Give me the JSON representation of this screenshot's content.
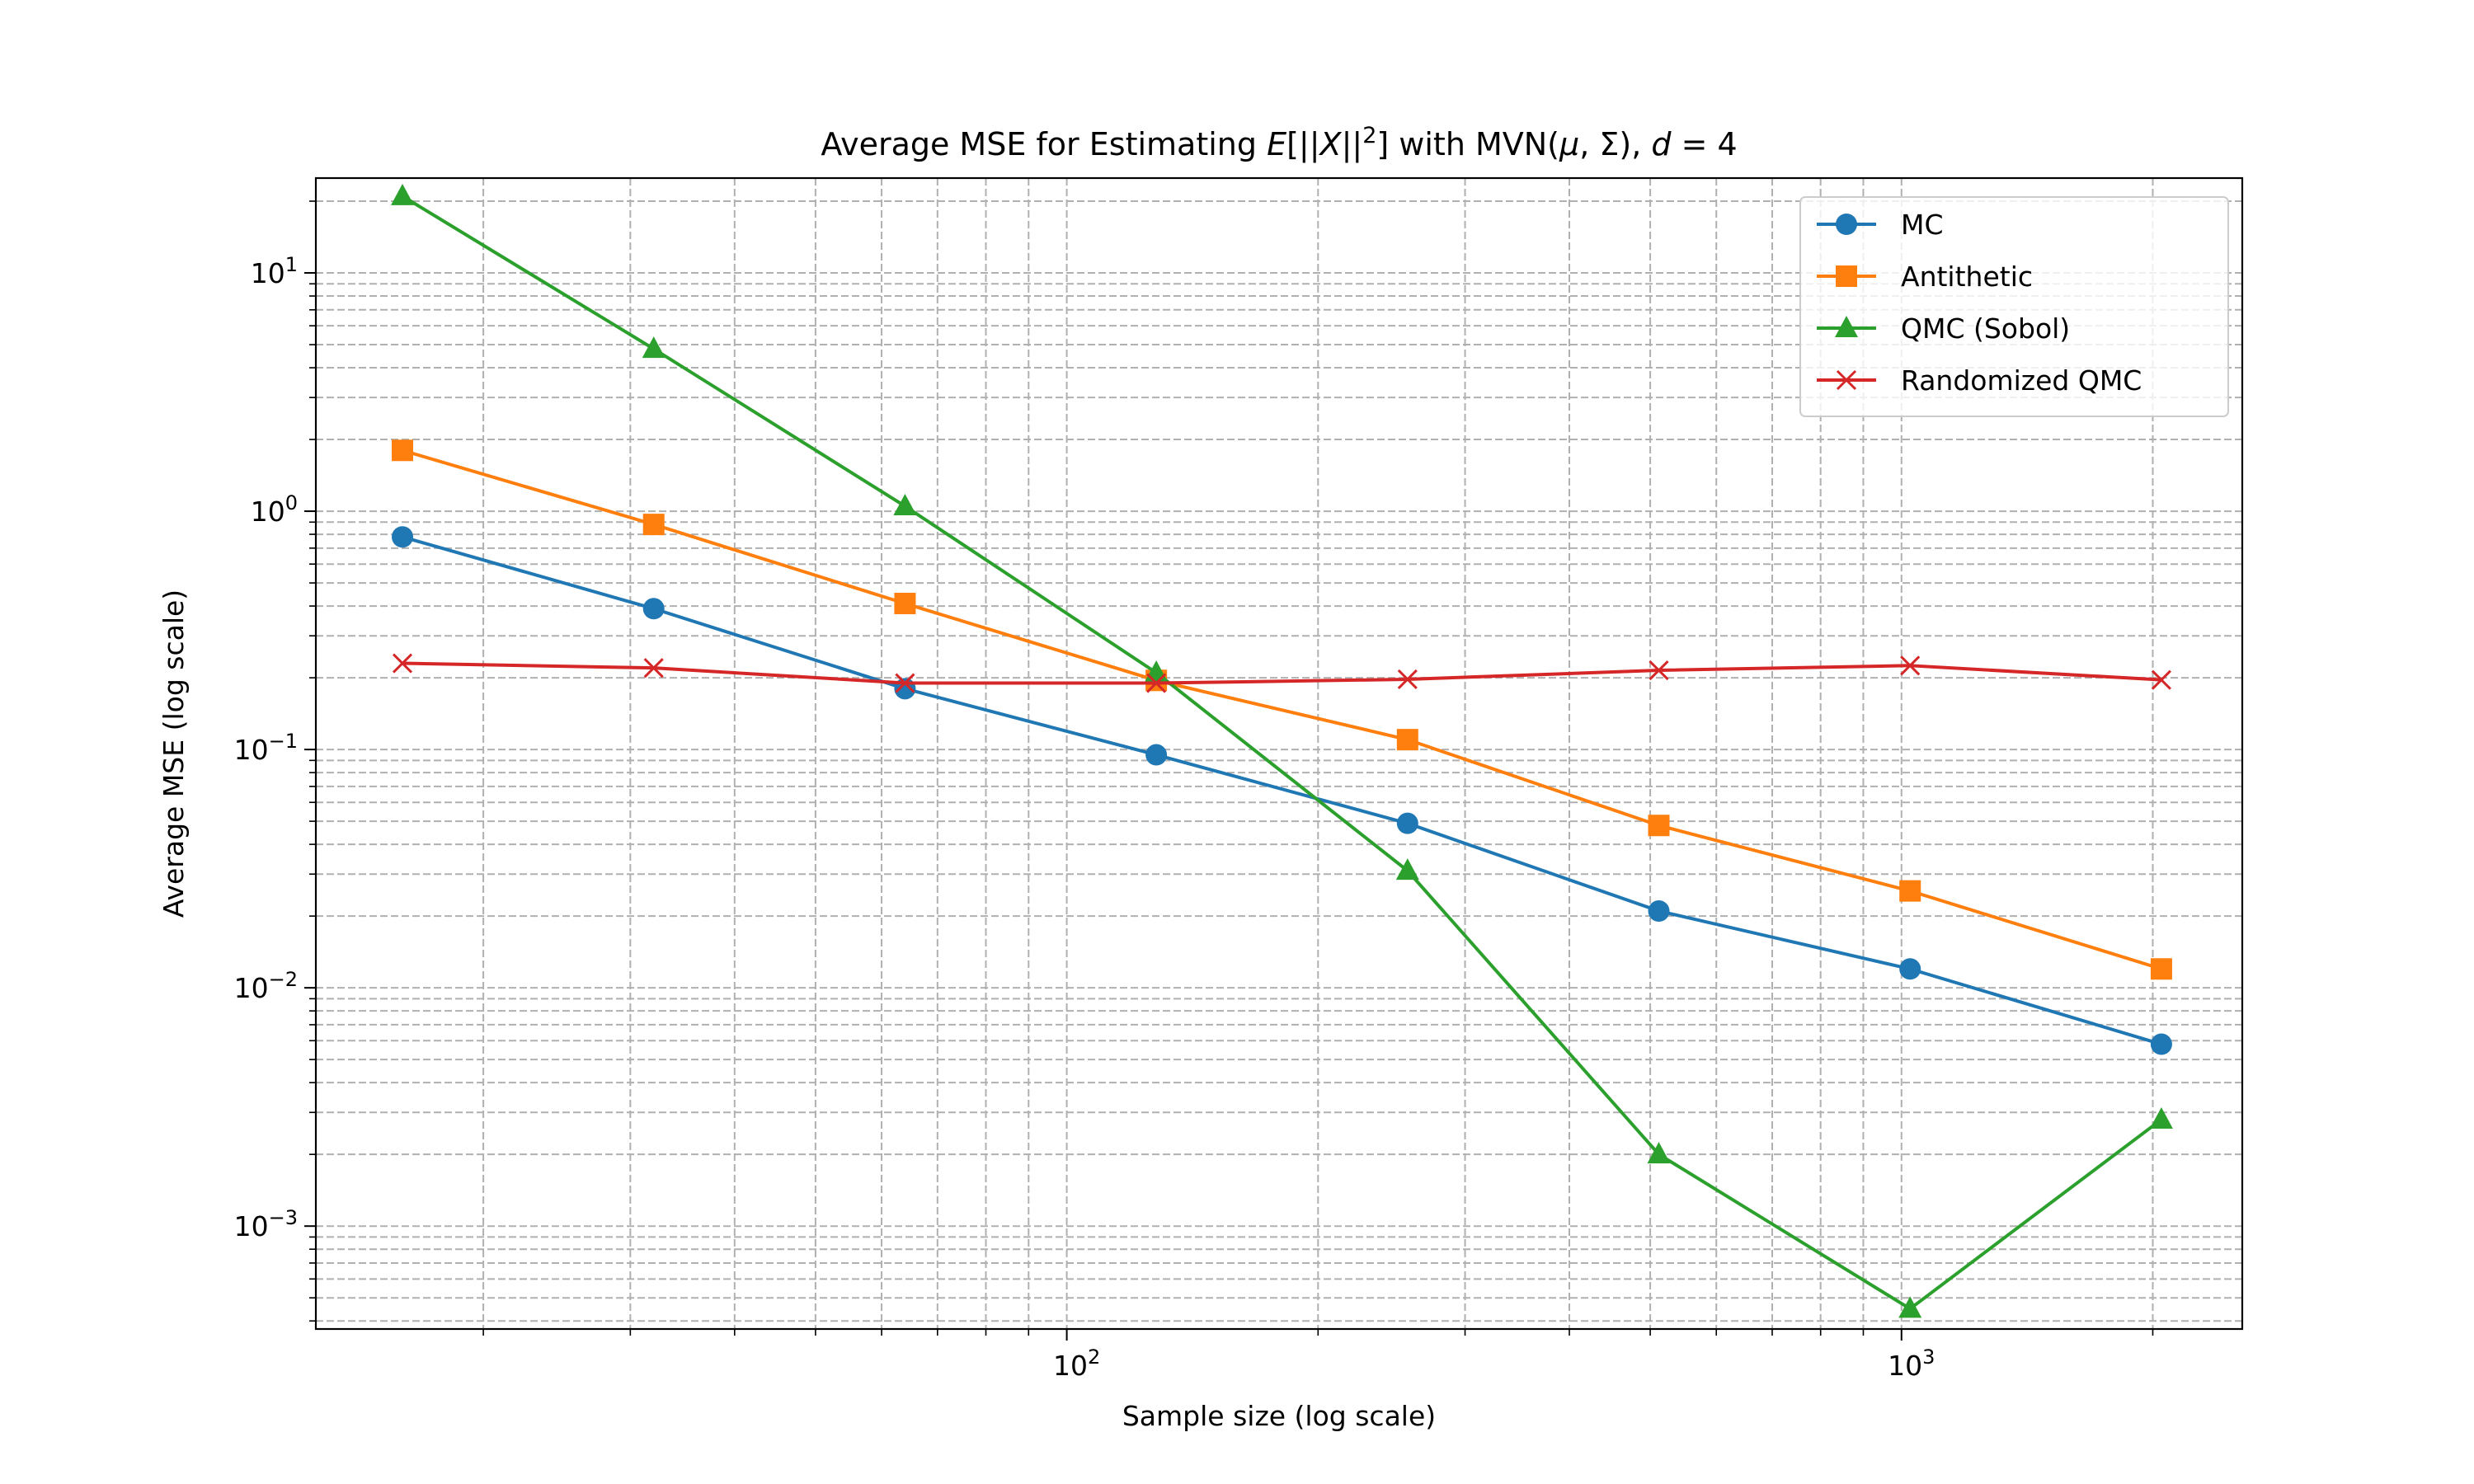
{
  "chart_data": {
    "type": "line",
    "title": {
      "pre": "Average MSE for Estimating ",
      "math1": "E",
      "brackets": "[||",
      "math2": "X",
      "bars": "||",
      "sup": "2",
      "close": "] with MVN(",
      "mu": "μ",
      "sep": ", Σ), ",
      "d": "d",
      "eq": " = 4"
    },
    "xlabel": "Sample size (log scale)",
    "ylabel": "Average MSE (log scale)",
    "xscale": "log",
    "yscale": "log",
    "xlim": [
      12.6,
      2560
    ],
    "ylim": [
      0.00037,
      25
    ],
    "x_ticks": [
      {
        "value": 100,
        "base": "10",
        "exp": "2"
      },
      {
        "value": 1000,
        "base": "10",
        "exp": "3"
      }
    ],
    "y_ticks": [
      {
        "value": 10,
        "base": "10",
        "exp": "1"
      },
      {
        "value": 1,
        "base": "10",
        "exp": "0"
      },
      {
        "value": 0.1,
        "base": "10",
        "exp": "−1"
      },
      {
        "value": 0.01,
        "base": "10",
        "exp": "−2"
      },
      {
        "value": 0.001,
        "base": "10",
        "exp": "−3"
      }
    ],
    "grid": true,
    "legend_position": "top-right",
    "x": [
      16,
      32,
      64,
      128,
      256,
      512,
      1024,
      2048
    ],
    "series": [
      {
        "name": "MC",
        "color": "#1f77b4",
        "marker": "circle",
        "values": [
          0.78,
          0.39,
          0.18,
          0.095,
          0.049,
          0.021,
          0.012,
          0.0058
        ]
      },
      {
        "name": "Antithetic",
        "color": "#ff7f0e",
        "marker": "square",
        "values": [
          1.8,
          0.88,
          0.41,
          0.195,
          0.11,
          0.048,
          0.0255,
          0.012
        ]
      },
      {
        "name": "QMC (Sobol)",
        "color": "#2ca02c",
        "marker": "triangle",
        "values": [
          21.0,
          4.8,
          1.05,
          0.21,
          0.031,
          0.002,
          0.00045,
          0.0028
        ]
      },
      {
        "name": "Randomized QMC",
        "color": "#d62728",
        "marker": "x",
        "values": [
          0.23,
          0.22,
          0.19,
          0.19,
          0.197,
          0.215,
          0.225,
          0.196
        ]
      }
    ]
  }
}
